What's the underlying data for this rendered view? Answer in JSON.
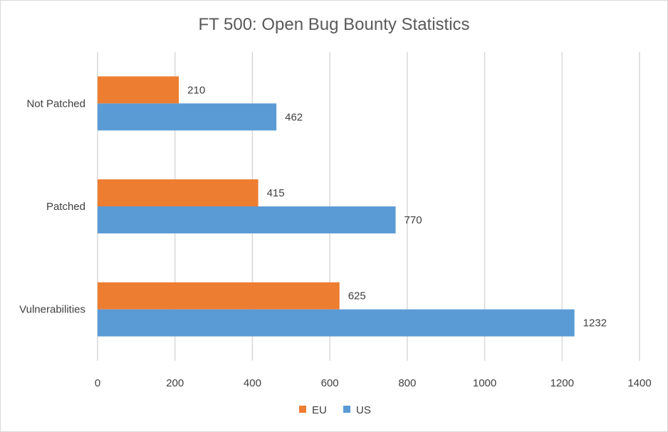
{
  "chart_data": {
    "type": "bar",
    "orientation": "horizontal",
    "title": "FT 500: Open Bug Bounty Statistics",
    "categories": [
      "Not Patched",
      "Patched",
      "Vulnerabilities"
    ],
    "series": [
      {
        "name": "EU",
        "values": [
          210,
          415,
          625
        ],
        "color": "#ED7D31"
      },
      {
        "name": "US",
        "values": [
          462,
          770,
          1232
        ],
        "color": "#5B9BD5"
      }
    ],
    "xlim": [
      0,
      1400
    ],
    "xticks": [
      0,
      200,
      400,
      600,
      800,
      1000,
      1200,
      1400
    ],
    "xlabel": "",
    "ylabel": "",
    "grid": true,
    "data_labels": true,
    "legend_position": "bottom"
  }
}
